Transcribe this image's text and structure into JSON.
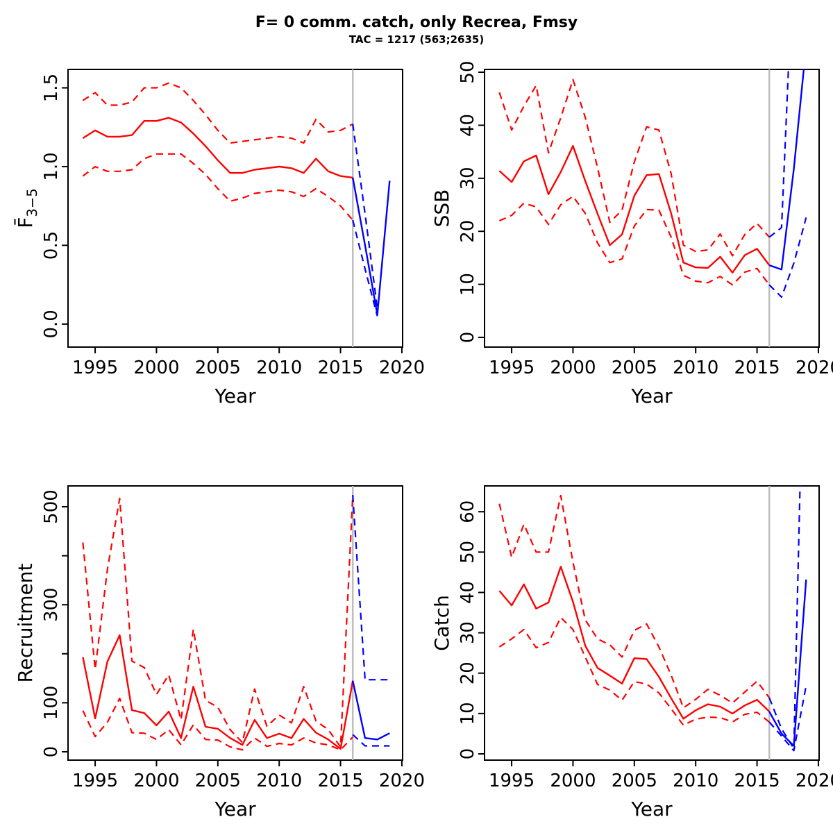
{
  "title": "F= 0 comm. catch, only Recrea, Fmsy",
  "subtitle": "TAC = 1217 (563;2635)",
  "colors": {
    "historic": "#ff0000",
    "forecast": "#0000ff",
    "divider": "#bebebe",
    "axis": "#000000",
    "background": "#ffffff"
  },
  "forecast_divider_year": 2016,
  "xlabel": "Year",
  "x_ticks": [
    1995,
    2000,
    2005,
    2010,
    2015,
    2020
  ],
  "xlim": [
    1992.79,
    2020.06
  ],
  "years_hist": [
    1994,
    1995,
    1996,
    1997,
    1998,
    1999,
    2000,
    2001,
    2002,
    2003,
    2004,
    2005,
    2006,
    2007,
    2008,
    2009,
    2010,
    2011,
    2012,
    2013,
    2014,
    2015,
    2016
  ],
  "years_forecast": [
    2016,
    2017,
    2018,
    2019
  ],
  "chart_data": [
    {
      "type": "line",
      "id": "fbar",
      "ylabel": "F̄",
      "ylabel_sub": "3−5",
      "xlabel": "Year",
      "legend_position": "none",
      "grid": false,
      "ylim": [
        -0.146,
        1.617
      ],
      "y_ticks": [
        0.0,
        0.5,
        1.0,
        1.5
      ],
      "y_tick_labels": [
        "0.0",
        "0.5",
        "1.0",
        "1.5"
      ],
      "hist_median": [
        1.18,
        1.23,
        1.19,
        1.19,
        1.2,
        1.29,
        1.29,
        1.31,
        1.28,
        1.21,
        1.13,
        1.04,
        0.96,
        0.96,
        0.98,
        0.99,
        1.0,
        0.99,
        0.96,
        1.05,
        0.97,
        0.94,
        0.93
      ],
      "hist_upper": [
        1.42,
        1.47,
        1.39,
        1.39,
        1.41,
        1.5,
        1.5,
        1.53,
        1.5,
        1.42,
        1.33,
        1.23,
        1.15,
        1.16,
        1.17,
        1.18,
        1.19,
        1.18,
        1.15,
        1.3,
        1.22,
        1.23,
        1.27
      ],
      "hist_lower": [
        0.94,
        1.0,
        0.97,
        0.97,
        0.98,
        1.05,
        1.08,
        1.08,
        1.08,
        1.02,
        0.95,
        0.86,
        0.78,
        0.8,
        0.83,
        0.84,
        0.85,
        0.84,
        0.81,
        0.86,
        0.81,
        0.75,
        0.66
      ],
      "forecast_median": [
        0.93,
        0.5,
        0.06,
        0.91
      ],
      "forecast_upper": [
        1.27,
        0.7,
        0.1,
        null
      ],
      "forecast_lower": [
        0.66,
        0.35,
        0.05,
        null
      ]
    },
    {
      "type": "line",
      "id": "ssb",
      "ylabel": "SSB",
      "ylabel_sub": "",
      "xlabel": "Year",
      "legend_position": "none",
      "grid": false,
      "ylim": [
        -1.83,
        50.53
      ],
      "y_ticks": [
        0,
        10,
        20,
        30,
        40,
        50
      ],
      "y_tick_labels": [
        "0",
        "10",
        "20",
        "30",
        "40",
        "50"
      ],
      "hist_median": [
        31.4,
        29.3,
        33.2,
        34.3,
        27.0,
        31.2,
        36.1,
        29.5,
        23.3,
        17.4,
        19.4,
        26.7,
        30.6,
        30.8,
        23.4,
        14.1,
        13.2,
        13.1,
        15.2,
        12.2,
        15.5,
        16.7,
        13.6
      ],
      "hist_upper": [
        46.2,
        39.1,
        43.6,
        47.5,
        34.8,
        41.4,
        48.6,
        41.5,
        32.0,
        21.7,
        24.0,
        33.1,
        39.7,
        39.1,
        30.9,
        17.4,
        16.2,
        16.5,
        19.5,
        15.4,
        19.4,
        21.5,
        18.9
      ],
      "hist_lower": [
        22.0,
        23.0,
        25.3,
        24.6,
        21.3,
        25.0,
        26.6,
        23.4,
        17.8,
        14.1,
        14.8,
        21.0,
        24.1,
        24.0,
        18.9,
        11.7,
        10.6,
        10.3,
        11.5,
        9.9,
        12.3,
        13.0,
        9.9
      ],
      "forecast_median": [
        13.6,
        12.8,
        31.8,
        55.0
      ],
      "forecast_upper": [
        18.9,
        20.7,
        74.0,
        130.0
      ],
      "forecast_lower": [
        9.9,
        7.6,
        14.0,
        22.6
      ]
    },
    {
      "type": "line",
      "id": "recruitment",
      "ylabel": "Recruitment",
      "ylabel_sub": "",
      "xlabel": "Year",
      "legend_position": "none",
      "grid": false,
      "ylim": [
        -17,
        542.5
      ],
      "y_ticks": [
        0,
        100,
        200,
        300,
        400,
        500
      ],
      "y_tick_labels": [
        "0",
        "100",
        "",
        "300",
        "",
        "500"
      ],
      "hist_median": [
        193,
        68,
        184,
        238,
        85,
        79,
        54,
        82,
        28,
        133,
        51,
        47,
        28,
        14,
        65,
        28,
        37,
        28,
        67,
        39,
        25,
        6,
        145
      ],
      "hist_upper": [
        427,
        168,
        372,
        517,
        185,
        172,
        117,
        157,
        65,
        250,
        105,
        91,
        45,
        19,
        128,
        52,
        75,
        59,
        133,
        63,
        45,
        10,
        524
      ],
      "hist_lower": [
        84,
        31,
        60,
        109,
        39,
        38,
        25,
        45,
        14,
        55,
        25,
        24,
        10,
        4,
        28,
        11,
        17,
        14,
        28,
        18,
        14,
        4,
        30
      ],
      "forecast_median": [
        145,
        28,
        25,
        38
      ],
      "forecast_upper": [
        524,
        147,
        147,
        147
      ],
      "forecast_lower": [
        35,
        12,
        12,
        12
      ]
    },
    {
      "type": "line",
      "id": "catch",
      "ylabel": "Catch",
      "ylabel_sub": "",
      "xlabel": "Year",
      "legend_position": "none",
      "grid": false,
      "ylim": [
        -1.55,
        66.4
      ],
      "y_ticks": [
        0,
        10,
        20,
        30,
        40,
        50,
        60
      ],
      "y_tick_labels": [
        "0",
        "10",
        "20",
        "30",
        "40",
        "50",
        "60"
      ],
      "hist_median": [
        40.4,
        36.8,
        42.0,
        36.0,
        37.5,
        46.4,
        37.7,
        26.8,
        21.3,
        19.4,
        17.4,
        23.7,
        23.5,
        19.1,
        13.8,
        8.7,
        10.8,
        12.3,
        11.7,
        10.0,
        12.0,
        13.4,
        10.5
      ],
      "hist_upper": [
        62.0,
        48.7,
        56.9,
        50.0,
        50.0,
        64.0,
        47.5,
        33.2,
        28.5,
        27.0,
        24.0,
        30.6,
        32.2,
        26.5,
        19.5,
        11.4,
        13.5,
        16.0,
        14.5,
        12.6,
        15.3,
        18.0,
        13.9
      ],
      "hist_lower": [
        26.5,
        28.5,
        30.8,
        26.3,
        27.6,
        33.8,
        30.8,
        24.0,
        17.2,
        15.8,
        13.3,
        17.9,
        17.3,
        15.1,
        11.2,
        7.1,
        8.6,
        9.1,
        9.0,
        7.9,
        9.8,
        10.3,
        7.9
      ],
      "forecast_median": [
        10.5,
        5.0,
        2.0,
        43.2
      ],
      "forecast_upper": [
        13.9,
        6.2,
        1.3,
        130.0
      ],
      "forecast_lower": [
        7.9,
        4.4,
        0.8,
        16.9
      ]
    }
  ]
}
